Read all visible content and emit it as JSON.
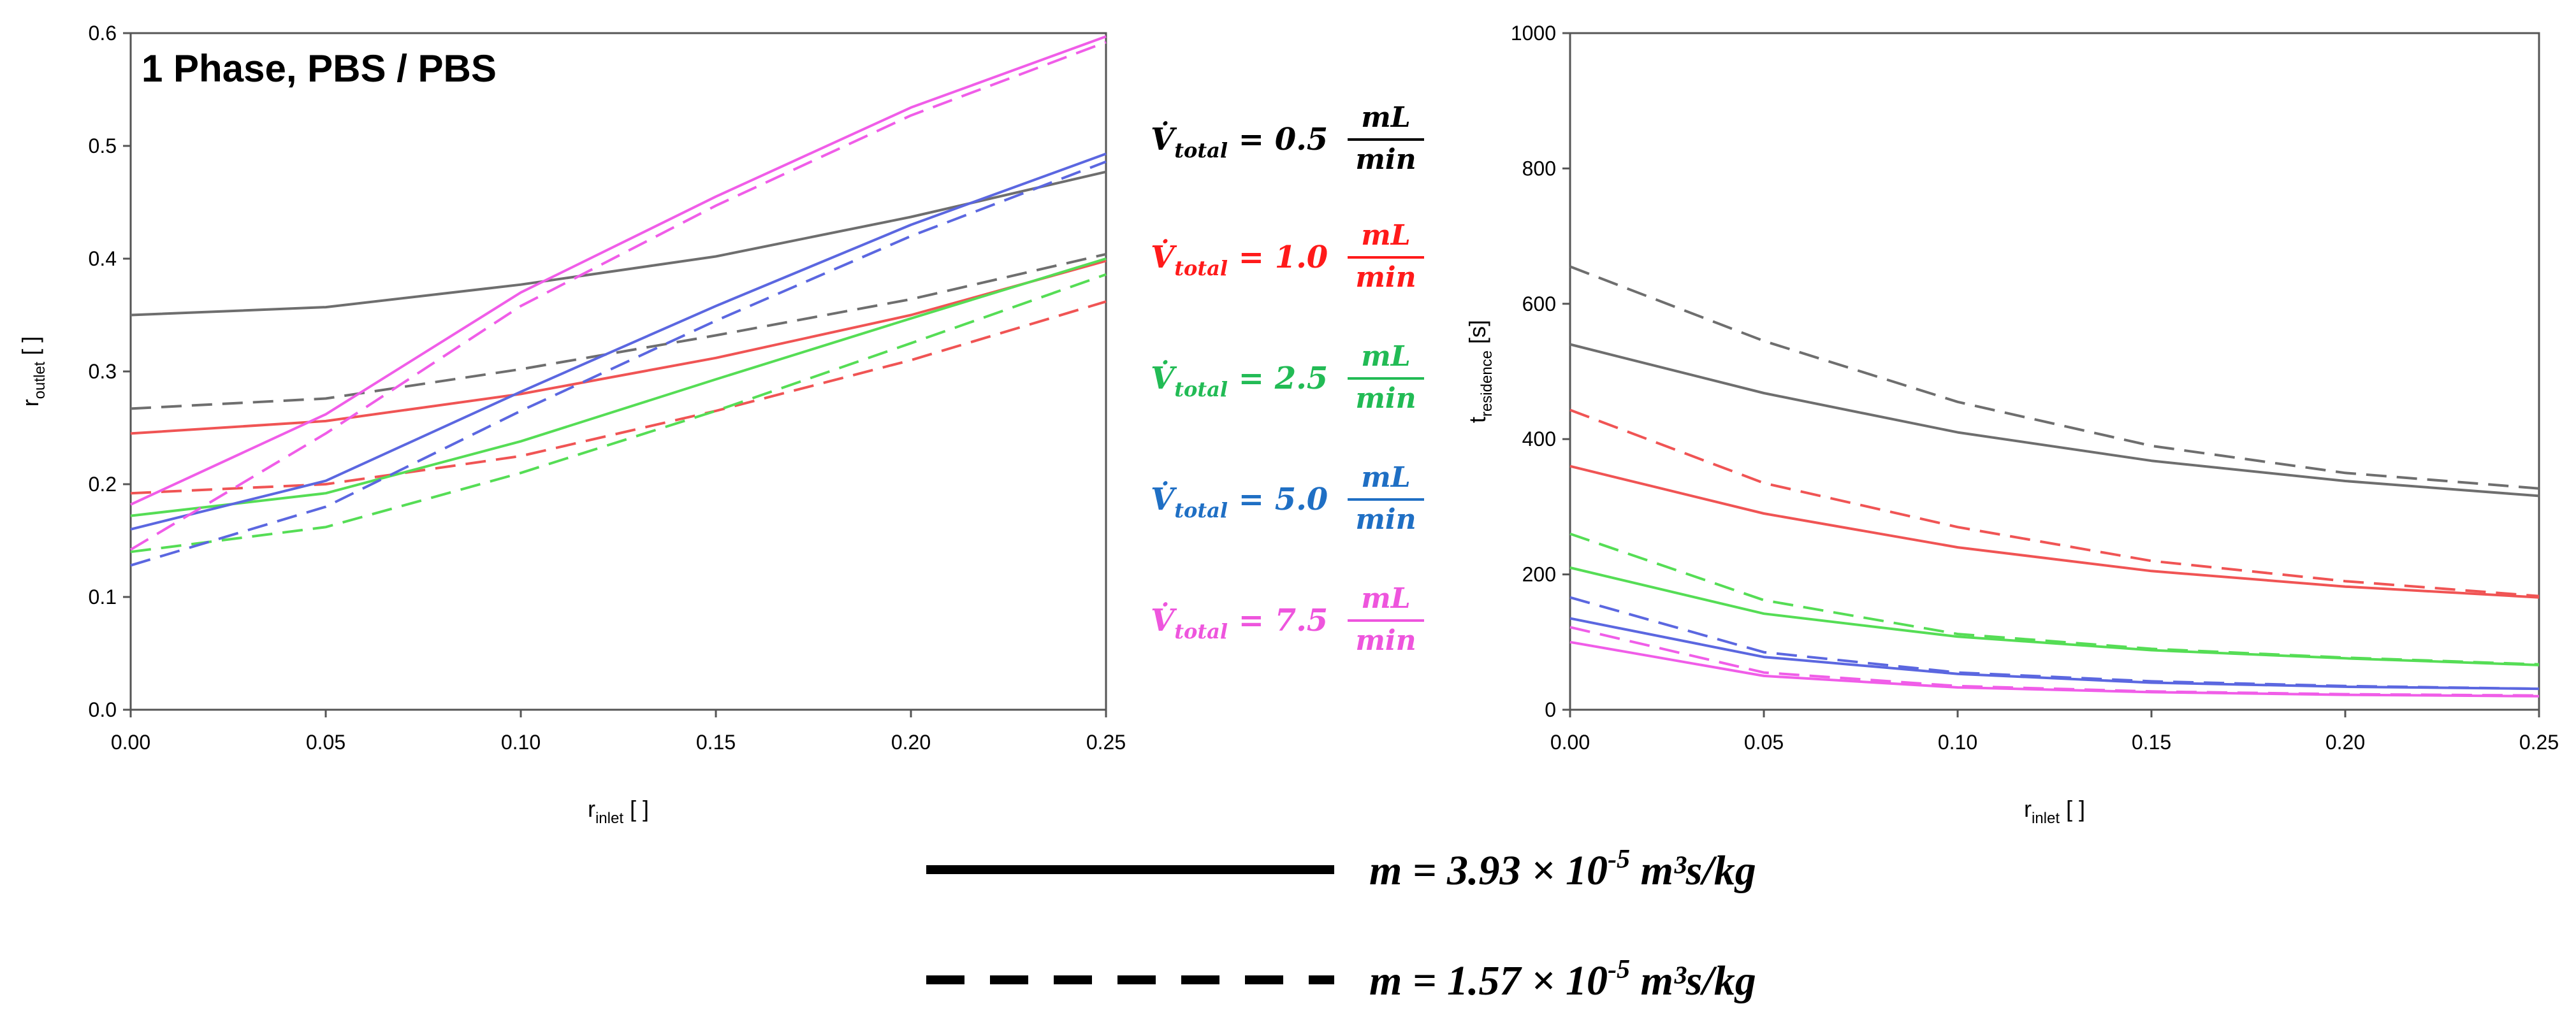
{
  "colors": {
    "0.5": "#6e6e6e",
    "1.0": "#f05454",
    "2.5": "#55dd55",
    "5.0": "#5b67e0",
    "7.5": "#f05de8"
  },
  "legend": {
    "flow_label": "V̇",
    "flow_subscript": "total",
    "unit_numerator": "mL",
    "unit_denominator": "min",
    "entries": [
      {
        "rate": "0.5",
        "color_key": "0.5",
        "text_color": "#000000"
      },
      {
        "rate": "1.0",
        "color_key": "1.0",
        "text_color": "#ff1a1a"
      },
      {
        "rate": "2.5",
        "color_key": "2.5",
        "text_color": "#22bb55"
      },
      {
        "rate": "5.0",
        "color_key": "5.0",
        "text_color": "#1f6fc4"
      },
      {
        "rate": "7.5",
        "color_key": "7.5",
        "text_color": "#ee55dd"
      }
    ]
  },
  "line_styles": [
    {
      "style": "solid",
      "label_prefix": "m = 3.93 × 10",
      "label_exp": "-5",
      "label_suffix": " m³s/kg"
    },
    {
      "style": "dashed",
      "label_prefix": "m = 1.57 × 10",
      "label_exp": "-5",
      "label_suffix": " m³s/kg"
    }
  ],
  "chart_data": [
    {
      "type": "line",
      "title": "1 Phase, PBS / PBS",
      "xlabel": "r",
      "xlabel_sub": "inlet",
      "xlabel_unit": " [ ]",
      "ylabel": "r",
      "ylabel_sub": "outlet",
      "ylabel_unit": " [ ]",
      "xlim": [
        0,
        0.25
      ],
      "ylim": [
        0,
        0.6
      ],
      "xticks": [
        "0.00",
        "0.05",
        "0.10",
        "0.15",
        "0.20",
        "0.25"
      ],
      "yticks": [
        "0.0",
        "0.1",
        "0.2",
        "0.3",
        "0.4",
        "0.5",
        "0.6"
      ],
      "x": [
        0,
        0.05,
        0.1,
        0.15,
        0.2,
        0.25
      ],
      "series": [
        {
          "name": "0.5 mL/min, m=3.93e-5",
          "flow": "0.5",
          "style": "solid",
          "values": [
            0.35,
            0.357,
            0.377,
            0.402,
            0.437,
            0.477
          ]
        },
        {
          "name": "0.5 mL/min, m=1.57e-5",
          "flow": "0.5",
          "style": "dashed",
          "values": [
            0.267,
            0.276,
            0.302,
            0.332,
            0.364,
            0.404
          ]
        },
        {
          "name": "1.0 mL/min, m=3.93e-5",
          "flow": "1.0",
          "style": "solid",
          "values": [
            0.245,
            0.256,
            0.28,
            0.312,
            0.35,
            0.398
          ]
        },
        {
          "name": "1.0 mL/min, m=1.57e-5",
          "flow": "1.0",
          "style": "dashed",
          "values": [
            0.192,
            0.2,
            0.225,
            0.265,
            0.31,
            0.362
          ]
        },
        {
          "name": "2.5 mL/min, m=3.93e-5",
          "flow": "2.5",
          "style": "solid",
          "values": [
            0.172,
            0.192,
            0.238,
            0.293,
            0.347,
            0.4
          ]
        },
        {
          "name": "2.5 mL/min, m=1.57e-5",
          "flow": "2.5",
          "style": "dashed",
          "values": [
            0.14,
            0.162,
            0.21,
            0.265,
            0.325,
            0.386
          ]
        },
        {
          "name": "5.0 mL/min, m=3.93e-5",
          "flow": "5.0",
          "style": "solid",
          "values": [
            0.16,
            0.203,
            0.282,
            0.358,
            0.43,
            0.493
          ]
        },
        {
          "name": "5.0 mL/min, m=1.57e-5",
          "flow": "5.0",
          "style": "dashed",
          "values": [
            0.128,
            0.18,
            0.265,
            0.345,
            0.42,
            0.486
          ]
        },
        {
          "name": "7.5 mL/min, m=3.93e-5",
          "flow": "7.5",
          "style": "solid",
          "values": [
            0.182,
            0.262,
            0.37,
            0.455,
            0.534,
            0.597
          ]
        },
        {
          "name": "7.5 mL/min, m=1.57e-5",
          "flow": "7.5",
          "style": "dashed",
          "values": [
            0.142,
            0.245,
            0.358,
            0.447,
            0.527,
            0.592
          ]
        }
      ]
    },
    {
      "type": "line",
      "title": "",
      "xlabel": "r",
      "xlabel_sub": "inlet",
      "xlabel_unit": " [ ]",
      "ylabel": "t",
      "ylabel_sub": "residence",
      "ylabel_unit": " [s]",
      "xlim": [
        0,
        0.25
      ],
      "ylim": [
        0,
        1000
      ],
      "xticks": [
        "0.00",
        "0.05",
        "0.10",
        "0.15",
        "0.20",
        "0.25"
      ],
      "yticks": [
        "0",
        "200",
        "400",
        "600",
        "800",
        "1000"
      ],
      "x": [
        0,
        0.05,
        0.1,
        0.15,
        0.2,
        0.25
      ],
      "series": [
        {
          "name": "0.5 mL/min, m=3.93e-5",
          "flow": "0.5",
          "style": "solid",
          "values": [
            540,
            468,
            410,
            368,
            338,
            316
          ]
        },
        {
          "name": "0.5 mL/min, m=1.57e-5",
          "flow": "0.5",
          "style": "dashed",
          "values": [
            655,
            545,
            455,
            390,
            350,
            327
          ]
        },
        {
          "name": "1.0 mL/min, m=3.93e-5",
          "flow": "1.0",
          "style": "solid",
          "values": [
            360,
            290,
            240,
            205,
            182,
            166
          ]
        },
        {
          "name": "1.0 mL/min, m=1.57e-5",
          "flow": "1.0",
          "style": "dashed",
          "values": [
            443,
            335,
            270,
            220,
            190,
            168
          ]
        },
        {
          "name": "2.5 mL/min, m=3.93e-5",
          "flow": "2.5",
          "style": "solid",
          "values": [
            210,
            142,
            108,
            88,
            76,
            66
          ]
        },
        {
          "name": "2.5 mL/min, m=1.57e-5",
          "flow": "2.5",
          "style": "dashed",
          "values": [
            260,
            162,
            112,
            90,
            77,
            67
          ]
        },
        {
          "name": "5.0 mL/min, m=3.93e-5",
          "flow": "5.0",
          "style": "solid",
          "values": [
            135,
            78,
            53,
            40,
            34,
            31
          ]
        },
        {
          "name": "5.0 mL/min, m=1.57e-5",
          "flow": "5.0",
          "style": "dashed",
          "values": [
            166,
            85,
            55,
            42,
            35,
            31
          ]
        },
        {
          "name": "7.5 mL/min, m=3.93e-5",
          "flow": "7.5",
          "style": "solid",
          "values": [
            100,
            50,
            33,
            26,
            22,
            20
          ]
        },
        {
          "name": "7.5 mL/min, m=1.57e-5",
          "flow": "7.5",
          "style": "dashed",
          "values": [
            122,
            55,
            35,
            27,
            23,
            21
          ]
        }
      ]
    }
  ]
}
